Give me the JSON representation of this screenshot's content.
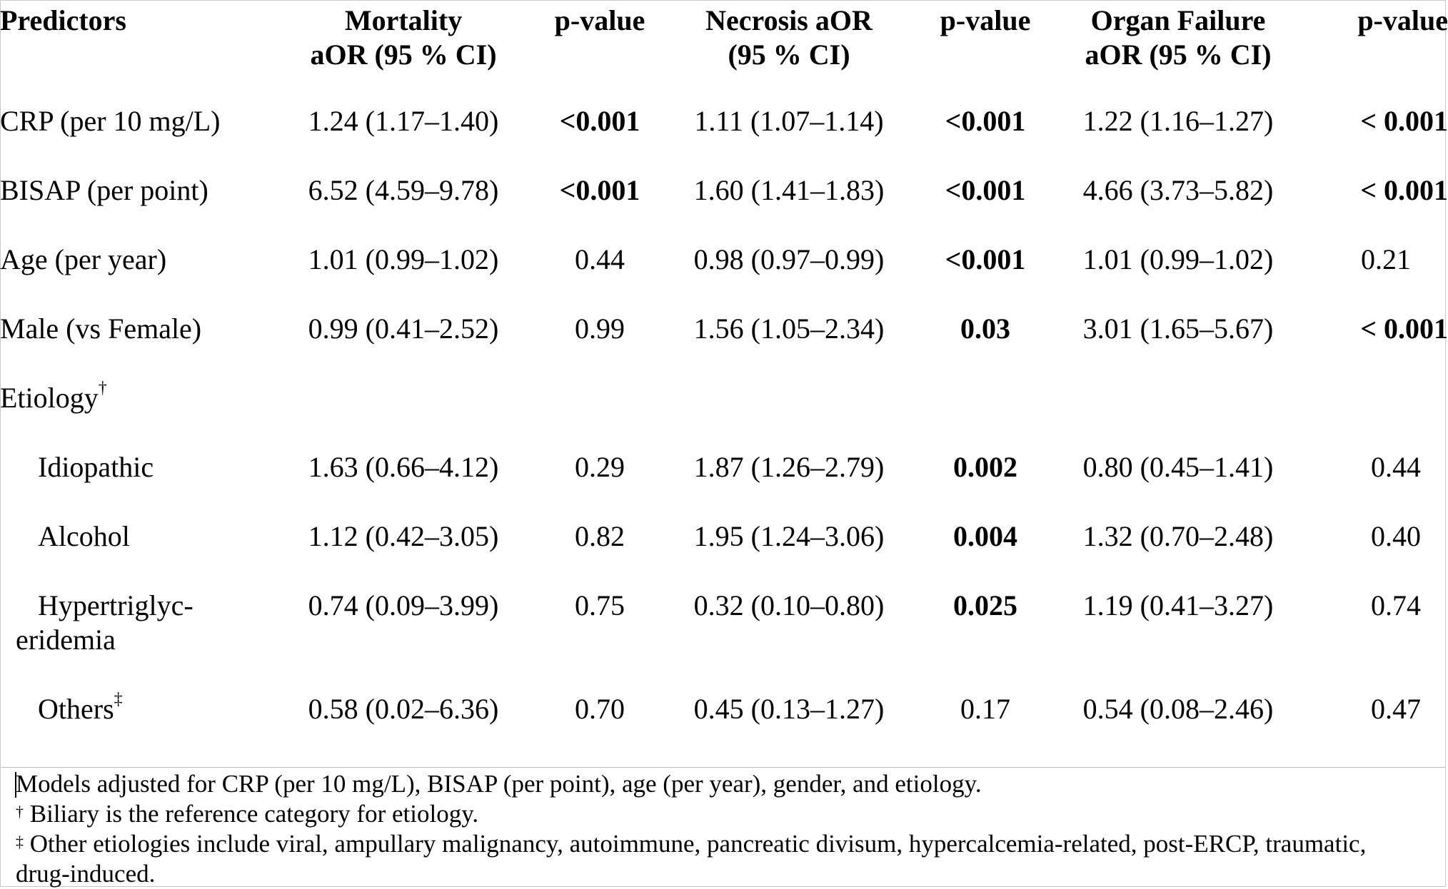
{
  "table": {
    "headers": {
      "predictors": "Predictors",
      "mortality_line1": "Mortality",
      "mortality_line2": "aOR (95 % CI)",
      "p1": "p-value",
      "necrosis_line1": "Necrosis aOR",
      "necrosis_line2": "(95 % CI)",
      "p2": "p-value",
      "organ_line1": "Organ Failure",
      "organ_line2": "aOR (95 % CI)",
      "p3": "p-value"
    },
    "rows": [
      {
        "label": "CRP (per 10 mg/L)",
        "mortality": "1.24 (1.17–1.40)",
        "p_mort": "<0.001",
        "necrosis": "1.11 (1.07–1.14)",
        "p_nec": "<0.001",
        "organ": "1.22 (1.16–1.27)",
        "p_org": "< 0.001"
      },
      {
        "label": "BISAP (per point)",
        "mortality": "6.52 (4.59–9.78)",
        "p_mort": "<0.001",
        "necrosis": "1.60 (1.41–1.83)",
        "p_nec": "<0.001",
        "organ": "4.66 (3.73–5.82)",
        "p_org": "< 0.001"
      },
      {
        "label": "Age (per year)",
        "mortality": "1.01 (0.99–1.02)",
        "p_mort": "0.44",
        "necrosis": "0.98 (0.97–0.99)",
        "p_nec": "<0.001",
        "organ": "1.01 (0.99–1.02)",
        "p_org": "0.21"
      },
      {
        "label": "Male (vs Female)",
        "mortality": "0.99 (0.41–2.52)",
        "p_mort": "0.99",
        "necrosis": "1.56 (1.05–2.34)",
        "p_nec": "0.03",
        "organ": "3.01 (1.65–5.67)",
        "p_org": "< 0.001"
      }
    ],
    "etiology_label": "Etiology",
    "etiology_mark": "†",
    "etiology_rows": [
      {
        "label": "Idiopathic",
        "mortality": "1.63 (0.66–4.12)",
        "p_mort": "0.29",
        "necrosis": "1.87 (1.26–2.79)",
        "p_nec": "0.002",
        "organ": "0.80 (0.45–1.41)",
        "p_org": "0.44"
      },
      {
        "label": "Alcohol",
        "mortality": "1.12 (0.42–3.05)",
        "p_mort": "0.82",
        "necrosis": "1.95 (1.24–3.06)",
        "p_nec": "0.004",
        "organ": "1.32 (0.70–2.48)",
        "p_org": "0.40"
      },
      {
        "label_line1": "Hypertriglyc-",
        "label_line2": "eridemia",
        "mortality": "0.74 (0.09–3.99)",
        "p_mort": "0.75",
        "necrosis": "0.32 (0.10–0.80)",
        "p_nec": "0.025",
        "organ": "1.19 (0.41–3.27)",
        "p_org": "0.74"
      },
      {
        "label": "Others",
        "label_mark": "‡",
        "mortality": "0.58 (0.02–6.36)",
        "p_mort": "0.70",
        "necrosis": "0.45 (0.13–1.27)",
        "p_nec": "0.17",
        "organ": "0.54 (0.08–2.46)",
        "p_org": "0.47"
      }
    ]
  },
  "footnotes": {
    "line1": "Models adjusted for CRP (per 10 mg/L), BISAP (per point), age (per year), gender, and etiology.",
    "mark2": "†",
    "line2": " Biliary is the reference category for etiology.",
    "mark3": "‡",
    "line3": " Other etiologies include viral, ampullary malignancy, autoimmune, pancreatic divisum, hypercalcemia-related, post-ERCP, traumatic,",
    "line4": "drug-induced."
  }
}
